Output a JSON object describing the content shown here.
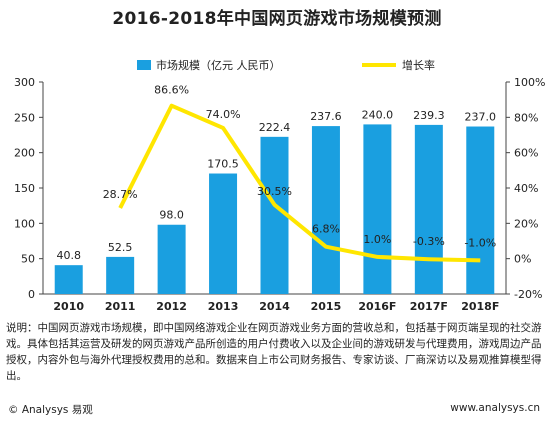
{
  "chart_data": {
    "type": "bar",
    "title": "2016-2018年中国网页游戏市场规模预测",
    "categories": [
      "2010",
      "2011",
      "2012",
      "2013",
      "2014",
      "2015",
      "2016F",
      "2017F",
      "2018F"
    ],
    "series": [
      {
        "name": "市场规模（亿元 人民币）",
        "type": "bar",
        "axis": "left",
        "values": [
          40.8,
          52.5,
          98.0,
          170.5,
          222.4,
          237.6,
          240.0,
          239.3,
          237.0
        ],
        "labels": [
          "40.8",
          "52.5",
          "98.0",
          "170.5",
          "222.4",
          "237.6",
          "240.0",
          "239.3",
          "237.0"
        ]
      },
      {
        "name": "增长率",
        "type": "line",
        "axis": "right",
        "values": [
          null,
          28.7,
          86.6,
          74.0,
          30.5,
          6.8,
          1.0,
          -0.3,
          -1.0
        ],
        "labels": [
          "",
          "28.7%",
          "86.6%",
          "74.0%",
          "30.5%",
          "6.8%",
          "1.0%",
          "-0.3%",
          "-1.0%"
        ]
      }
    ],
    "y_left": {
      "lim": [
        0,
        300
      ],
      "ticks": [
        "0",
        "50",
        "100",
        "150",
        "200",
        "250",
        "300"
      ]
    },
    "y_right": {
      "lim": [
        -20,
        100
      ],
      "ticks": [
        "-20%",
        "0%",
        "20%",
        "40%",
        "60%",
        "80%",
        "100%"
      ]
    },
    "legend_position": "top",
    "colors": {
      "bar": "#1a9fe0",
      "line": "#ffe600"
    }
  },
  "note": "说明：中国网页游戏市场规模，即中国网络游戏企业在网页游戏业务方面的营收总和，包括基于网页端呈现的社交游戏。具体包括其运营及研发的网页游戏产品所创造的用户付费收入以及企业间的游戏研发与代理费用，游戏周边产品授权，内容外包与海外代理授权费用的总和。数据来自上市公司财务报告、专家访谈、厂商深访以及易观推算模型得出。",
  "footer": {
    "left": "© Analysys 易观",
    "right": "www.analysys.cn"
  }
}
